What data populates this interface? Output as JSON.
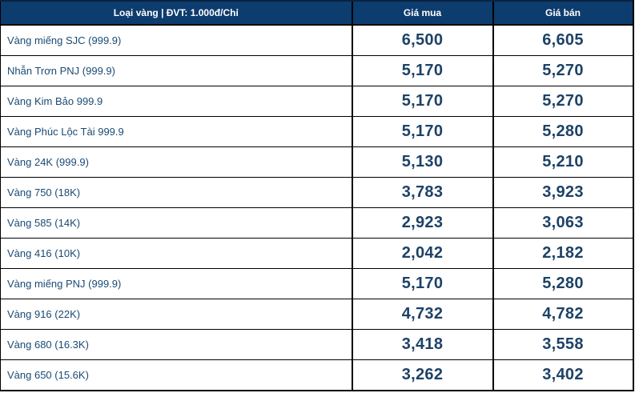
{
  "table": {
    "header": {
      "type_label": "Loại vàng | ĐVT: 1.000đ/Chỉ",
      "buy_label": "Giá mua",
      "sell_label": "Giá bán"
    },
    "rows": [
      {
        "type": "Vàng miếng SJC (999.9)",
        "buy": "6,500",
        "sell": "6,605"
      },
      {
        "type": "Nhẫn Trơn PNJ (999.9)",
        "buy": "5,170",
        "sell": "5,270"
      },
      {
        "type": "Vàng Kim Bảo 999.9",
        "buy": "5,170",
        "sell": "5,270"
      },
      {
        "type": "Vàng Phúc Lộc Tài 999.9",
        "buy": "5,170",
        "sell": "5,280"
      },
      {
        "type": "Vàng 24K (999.9)",
        "buy": "5,130",
        "sell": "5,210"
      },
      {
        "type": "Vàng 750 (18K)",
        "buy": "3,783",
        "sell": "3,923"
      },
      {
        "type": "Vàng 585 (14K)",
        "buy": "2,923",
        "sell": "3,063"
      },
      {
        "type": "Vàng 416 (10K)",
        "buy": "2,042",
        "sell": "2,182"
      },
      {
        "type": "Vàng miếng PNJ (999.9)",
        "buy": "5,170",
        "sell": "5,280"
      },
      {
        "type": "Vàng 916 (22K)",
        "buy": "4,732",
        "sell": "4,782"
      },
      {
        "type": "Vàng 680 (16.3K)",
        "buy": "3,418",
        "sell": "3,558"
      },
      {
        "type": "Vàng 650 (15.6K)",
        "buy": "3,262",
        "sell": "3,402"
      }
    ]
  },
  "colors": {
    "header_bg": "#0d3c6e",
    "header_text": "#ffffff",
    "type_text": "#1a4a74",
    "price_text": "#1d4266",
    "border": "#000000"
  }
}
